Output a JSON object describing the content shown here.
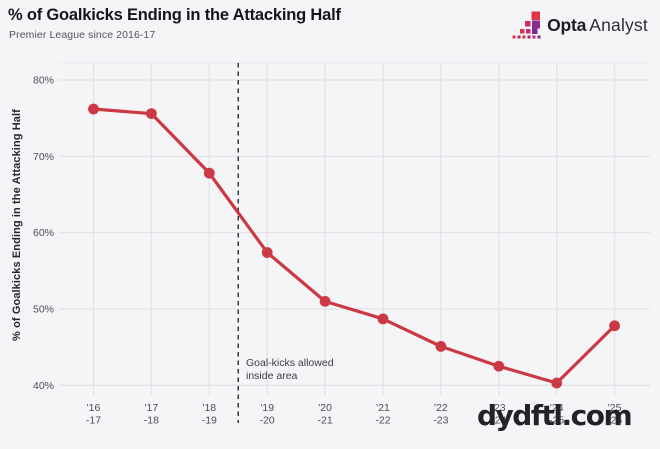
{
  "header": {
    "title": "% of Goalkicks Ending in the Attacking Half",
    "subtitle": "Premier League since 2016-17",
    "brand": {
      "bold": "Opta",
      "light": "Analyst"
    }
  },
  "watermark": "dydftl.com",
  "chart_data": {
    "type": "line",
    "title": "% of Goalkicks Ending in the Attacking Half",
    "subtitle": "Premier League since 2016-17",
    "ylabel": "% of Goalkicks Ending in the Attacking Half",
    "xlabel": "",
    "categories": [
      "'16-17",
      "'17-18",
      "'18-19",
      "'19-20",
      "'20-21",
      "'21-22",
      "'22-23",
      "'23-24",
      "'24-25",
      "'25-26"
    ],
    "category_labels": [
      [
        "'16",
        "-17"
      ],
      [
        "'17",
        "-18"
      ],
      [
        "'18",
        "-19"
      ],
      [
        "'19",
        "-20"
      ],
      [
        "'20",
        "-21"
      ],
      [
        "'21",
        "-22"
      ],
      [
        "'22",
        "-23"
      ],
      [
        "'23",
        "-24"
      ],
      [
        "'24",
        "-25"
      ],
      [
        "'25",
        "-26"
      ]
    ],
    "series": [
      {
        "name": "% of goalkicks ending in the attacking half",
        "values": [
          76.2,
          75.6,
          67.8,
          57.4,
          51.0,
          48.7,
          45.1,
          42.5,
          40.3,
          47.8
        ]
      }
    ],
    "yticks": [
      40,
      50,
      60,
      70,
      80
    ],
    "ytick_suffix": "%",
    "ylim": [
      40,
      82
    ],
    "grid": true,
    "legend": "none",
    "line_color": "#cb3944",
    "marker_color": "#cb3944",
    "background_color": "#f5f4f6",
    "gridline_color": "#e4e2e7",
    "annotation": {
      "lines": [
        "Goal-kicks allowed",
        "inside area"
      ],
      "attached_between": [
        "'18-19",
        "'19-20"
      ]
    },
    "reference_line": {
      "type": "vertical-dashed",
      "between_index": [
        2,
        3
      ],
      "color": "#38playholder"
    }
  }
}
